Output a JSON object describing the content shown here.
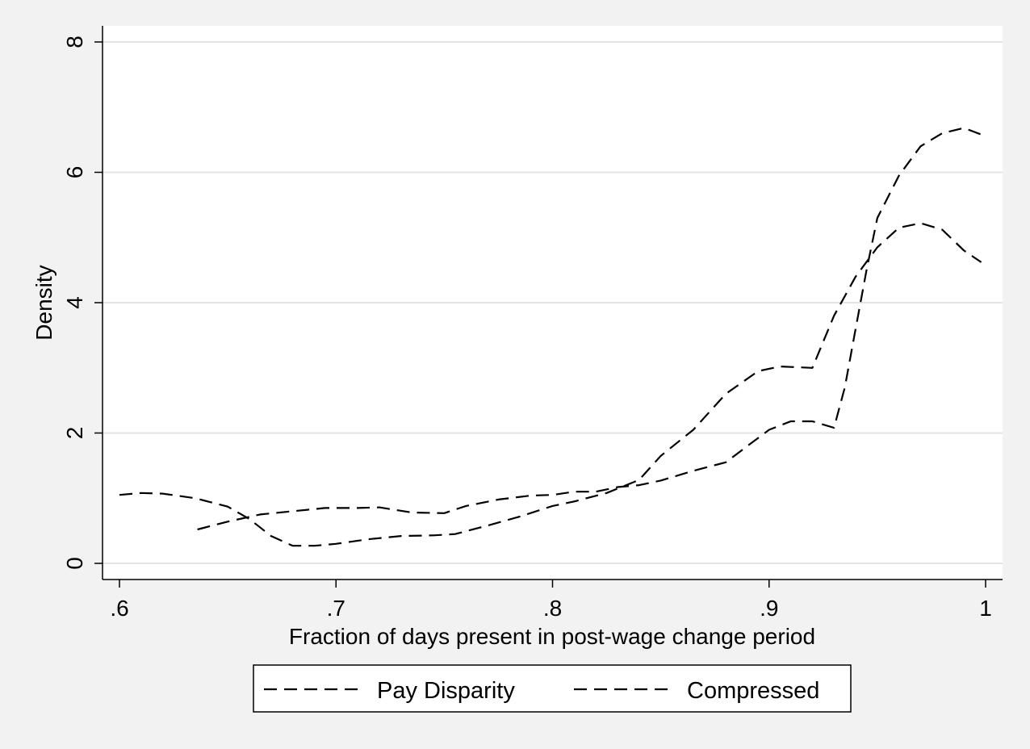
{
  "chart_data": {
    "type": "line",
    "title": "",
    "xlabel": "Fraction of days present in post-wage change period",
    "ylabel": "Density",
    "xlim": [
      0.6,
      1.0
    ],
    "ylim": [
      0,
      8
    ],
    "xticks": [
      {
        "value": 0.6,
        "label": ".6"
      },
      {
        "value": 0.7,
        "label": ".7"
      },
      {
        "value": 0.8,
        "label": ".8"
      },
      {
        "value": 0.9,
        "label": ".9"
      },
      {
        "value": 1.0,
        "label": "1"
      }
    ],
    "yticks": [
      {
        "value": 0,
        "label": "0"
      },
      {
        "value": 2,
        "label": "2"
      },
      {
        "value": 4,
        "label": "4"
      },
      {
        "value": 6,
        "label": "6"
      },
      {
        "value": 8,
        "label": "8"
      }
    ],
    "grid": "horizontal",
    "legend": "bottom",
    "series": [
      {
        "name": "Pay Disparity",
        "color": "#000000",
        "dash": "dashed",
        "points": [
          [
            0.636,
            0.52
          ],
          [
            0.65,
            0.64
          ],
          [
            0.665,
            0.75
          ],
          [
            0.68,
            0.8
          ],
          [
            0.695,
            0.85
          ],
          [
            0.71,
            0.85
          ],
          [
            0.72,
            0.86
          ],
          [
            0.735,
            0.78
          ],
          [
            0.75,
            0.77
          ],
          [
            0.76,
            0.88
          ],
          [
            0.775,
            0.98
          ],
          [
            0.79,
            1.04
          ],
          [
            0.8,
            1.05
          ],
          [
            0.81,
            1.1
          ],
          [
            0.82,
            1.1
          ],
          [
            0.83,
            1.17
          ],
          [
            0.84,
            1.2
          ],
          [
            0.85,
            1.27
          ],
          [
            0.865,
            1.42
          ],
          [
            0.88,
            1.55
          ],
          [
            0.89,
            1.8
          ],
          [
            0.9,
            2.05
          ],
          [
            0.91,
            2.18
          ],
          [
            0.92,
            2.18
          ],
          [
            0.93,
            2.08
          ],
          [
            0.935,
            2.7
          ],
          [
            0.94,
            3.6
          ],
          [
            0.945,
            4.5
          ],
          [
            0.95,
            5.3
          ],
          [
            0.96,
            5.95
          ],
          [
            0.97,
            6.4
          ],
          [
            0.98,
            6.6
          ],
          [
            0.99,
            6.68
          ],
          [
            0.998,
            6.58
          ]
        ]
      },
      {
        "name": "Compressed",
        "color": "#000000",
        "dash": "dashed",
        "points": [
          [
            0.6,
            1.05
          ],
          [
            0.61,
            1.08
          ],
          [
            0.62,
            1.07
          ],
          [
            0.635,
            1.0
          ],
          [
            0.65,
            0.87
          ],
          [
            0.66,
            0.68
          ],
          [
            0.67,
            0.42
          ],
          [
            0.68,
            0.27
          ],
          [
            0.69,
            0.27
          ],
          [
            0.7,
            0.3
          ],
          [
            0.715,
            0.37
          ],
          [
            0.73,
            0.42
          ],
          [
            0.745,
            0.43
          ],
          [
            0.755,
            0.45
          ],
          [
            0.77,
            0.58
          ],
          [
            0.785,
            0.72
          ],
          [
            0.8,
            0.88
          ],
          [
            0.81,
            0.95
          ],
          [
            0.825,
            1.08
          ],
          [
            0.84,
            1.28
          ],
          [
            0.85,
            1.65
          ],
          [
            0.865,
            2.05
          ],
          [
            0.88,
            2.6
          ],
          [
            0.895,
            2.95
          ],
          [
            0.905,
            3.02
          ],
          [
            0.92,
            3.0
          ],
          [
            0.93,
            3.8
          ],
          [
            0.94,
            4.4
          ],
          [
            0.95,
            4.85
          ],
          [
            0.96,
            5.15
          ],
          [
            0.97,
            5.22
          ],
          [
            0.98,
            5.12
          ],
          [
            0.99,
            4.8
          ],
          [
            0.998,
            4.62
          ]
        ]
      }
    ]
  }
}
